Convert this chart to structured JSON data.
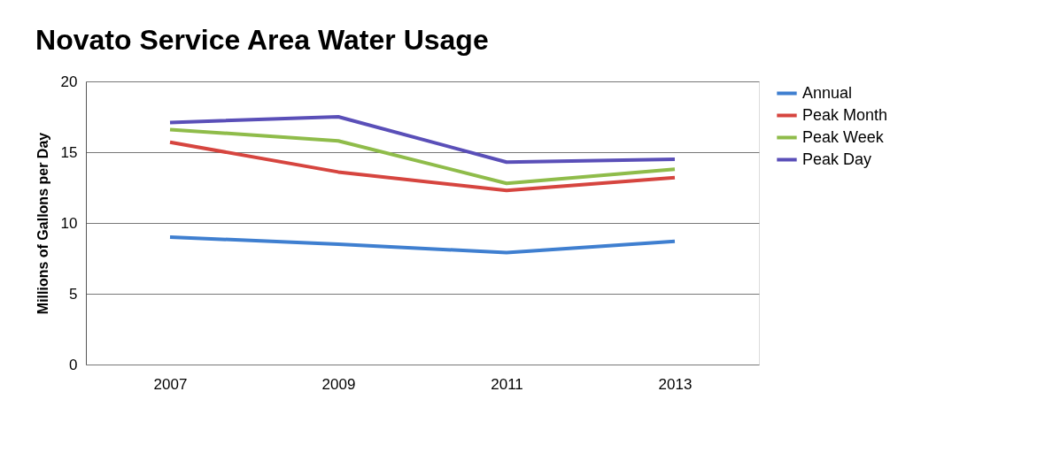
{
  "chart_data": {
    "type": "line",
    "title": "Novato Service Area Water Usage",
    "ylabel": "Millions of Gallons per Day",
    "categories": [
      "2007",
      "2009",
      "2011",
      "2013"
    ],
    "series": [
      {
        "name": "Annual",
        "color": "#3f7fd0",
        "values": [
          9.0,
          8.5,
          7.9,
          8.7
        ]
      },
      {
        "name": "Peak Month",
        "color": "#d6453f",
        "values": [
          15.7,
          13.6,
          12.3,
          13.2
        ]
      },
      {
        "name": "Peak Week",
        "color": "#8fbc4a",
        "values": [
          16.6,
          15.8,
          12.8,
          13.8
        ]
      },
      {
        "name": "Peak Day",
        "color": "#5a4fb8",
        "values": [
          17.1,
          17.5,
          14.3,
          14.5
        ]
      }
    ],
    "ylim": [
      0,
      20
    ],
    "yticks": [
      0,
      5,
      10,
      15,
      20
    ],
    "grid": "y",
    "legend": "right",
    "marker": "none",
    "line_style": "solid"
  }
}
